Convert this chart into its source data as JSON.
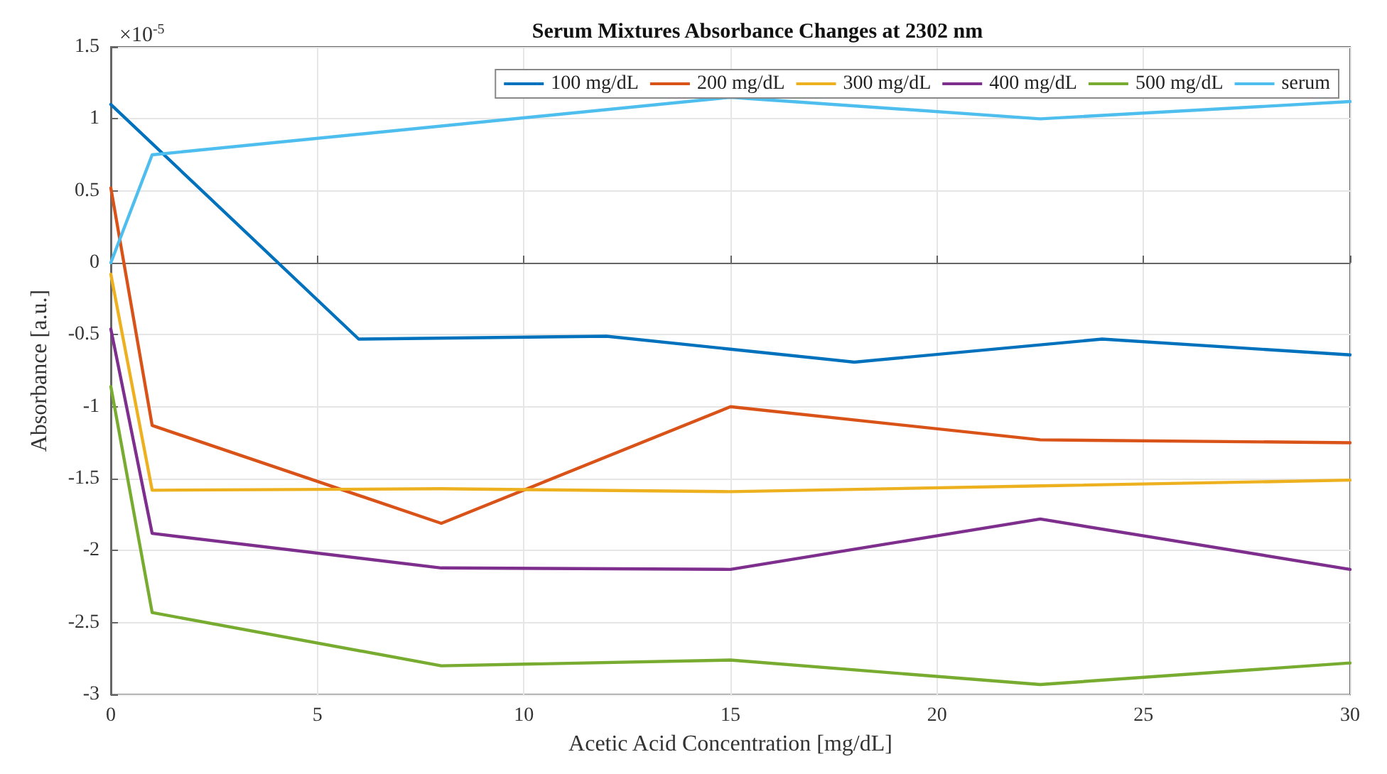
{
  "chart_data": {
    "type": "line",
    "title": "Serum Mixtures Absorbance Changes at 2302 nm",
    "xlabel": "Acetic Acid Concentration [mg/dL]",
    "ylabel": "Absorbance [a.u.]",
    "annotations": [
      "×10$^{-5}$"
    ],
    "series": [
      {
        "name": "100 mg/dL",
        "color": "#0072bd",
        "x": [
          0,
          6,
          12,
          15,
          18,
          24,
          30
        ],
        "values": [
          1.1,
          -0.53,
          -0.51,
          -0.6,
          -0.69,
          -0.53,
          -0.64
        ]
      },
      {
        "name": "200 mg/dL",
        "color": "#d95319",
        "x": [
          0,
          1,
          8,
          15,
          22.5,
          30
        ],
        "values": [
          0.52,
          -1.13,
          -1.81,
          -1.0,
          -1.23,
          -1.25
        ]
      },
      {
        "name": "300 mg/dL",
        "color": "#edb120",
        "x": [
          0,
          1,
          8,
          15,
          22.5,
          30
        ],
        "values": [
          -0.08,
          -1.58,
          -1.57,
          -1.59,
          -1.55,
          -1.51
        ]
      },
      {
        "name": "400 mg/dL",
        "color": "#7e2f8e",
        "x": [
          0,
          1,
          8,
          15,
          22.5,
          30
        ],
        "values": [
          -0.46,
          -1.88,
          -2.12,
          -2.13,
          -1.78,
          -2.13
        ]
      },
      {
        "name": "500 mg/dL",
        "color": "#77ac30",
        "x": [
          0,
          1,
          8,
          15,
          22.5,
          30
        ],
        "values": [
          -0.86,
          -2.43,
          -2.8,
          -2.76,
          -2.93,
          -2.78
        ]
      },
      {
        "name": "serum",
        "color": "#4dbeee",
        "x": [
          0,
          1,
          15,
          22.5,
          30
        ],
        "values": [
          0,
          0.75,
          1.15,
          1.0,
          1.12
        ]
      }
    ],
    "xlim": [
      0,
      30
    ],
    "xticks": [
      0,
      5,
      10,
      15,
      20,
      25,
      30
    ],
    "ylim": [
      -3,
      1.5
    ],
    "yticks": [
      -3,
      -2.5,
      -2,
      -1.5,
      -1,
      -0.5,
      0,
      0.5,
      1,
      1.5
    ],
    "grid": true,
    "legend": "top right",
    "marker": "none",
    "line_style": "solid"
  }
}
